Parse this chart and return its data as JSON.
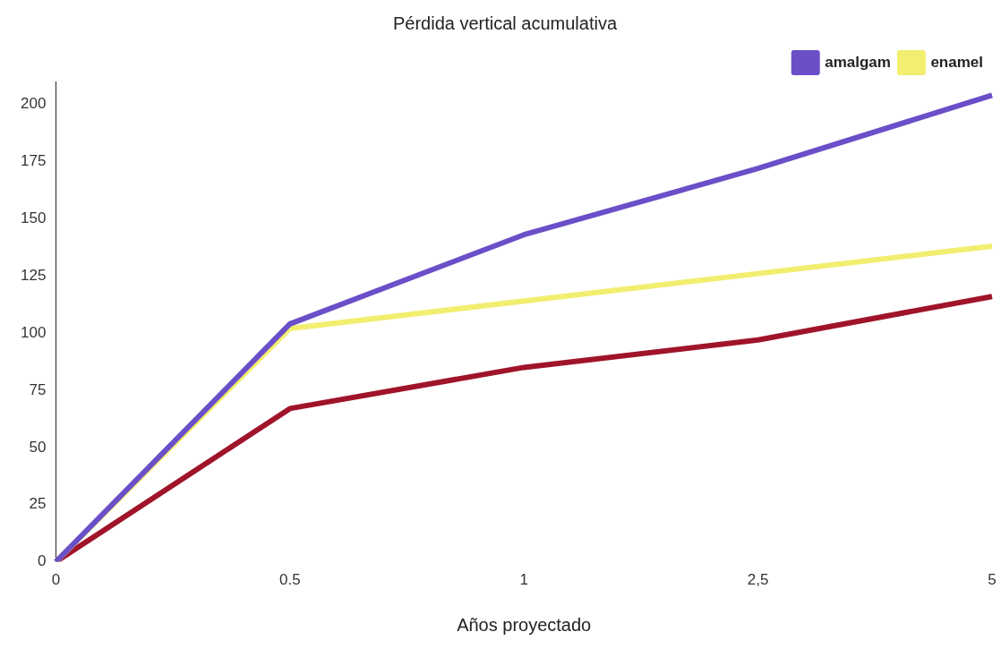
{
  "chart_data": {
    "type": "line",
    "title": "Pérdida vertical acumulativa",
    "xlabel": "Años proyectado",
    "categories": [
      "0",
      "0.5",
      "1",
      "2,5",
      "5"
    ],
    "series": [
      {
        "name": "amalgam",
        "color": "#6a4fc8",
        "values": [
          0,
          104,
          143,
          172,
          204
        ]
      },
      {
        "name": "enamel",
        "color": "#f2ee70",
        "values": [
          0,
          102,
          null,
          null,
          138
        ]
      },
      {
        "color": "#a0142a",
        "values": [
          0,
          67,
          85,
          97,
          116
        ]
      }
    ],
    "ylim": [
      0,
      210
    ],
    "yticks": [
      0,
      25,
      50,
      75,
      100,
      125,
      150,
      175,
      200
    ],
    "grid": false,
    "legend": "top right",
    "marker": "none",
    "line_style": "solid"
  }
}
